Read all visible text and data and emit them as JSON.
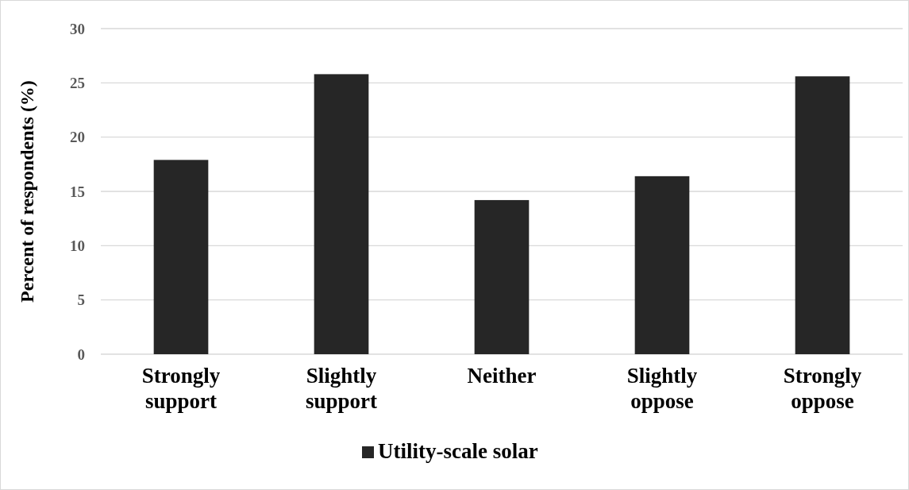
{
  "chart_data": {
    "type": "bar",
    "ylabel": "Percent of respondents (%)",
    "categories": [
      "Strongly support",
      "Slightly support",
      "Neither",
      "Slightly oppose",
      "Strongly oppose"
    ],
    "series": [
      {
        "name": "Utility-scale solar",
        "color": "#262626",
        "values": [
          17.9,
          25.8,
          14.2,
          16.4,
          25.6
        ]
      }
    ],
    "ylim": [
      0,
      30
    ],
    "yticks": [
      0,
      5,
      10,
      15,
      20,
      25,
      30
    ],
    "grid": "y",
    "legend": "bottom"
  }
}
